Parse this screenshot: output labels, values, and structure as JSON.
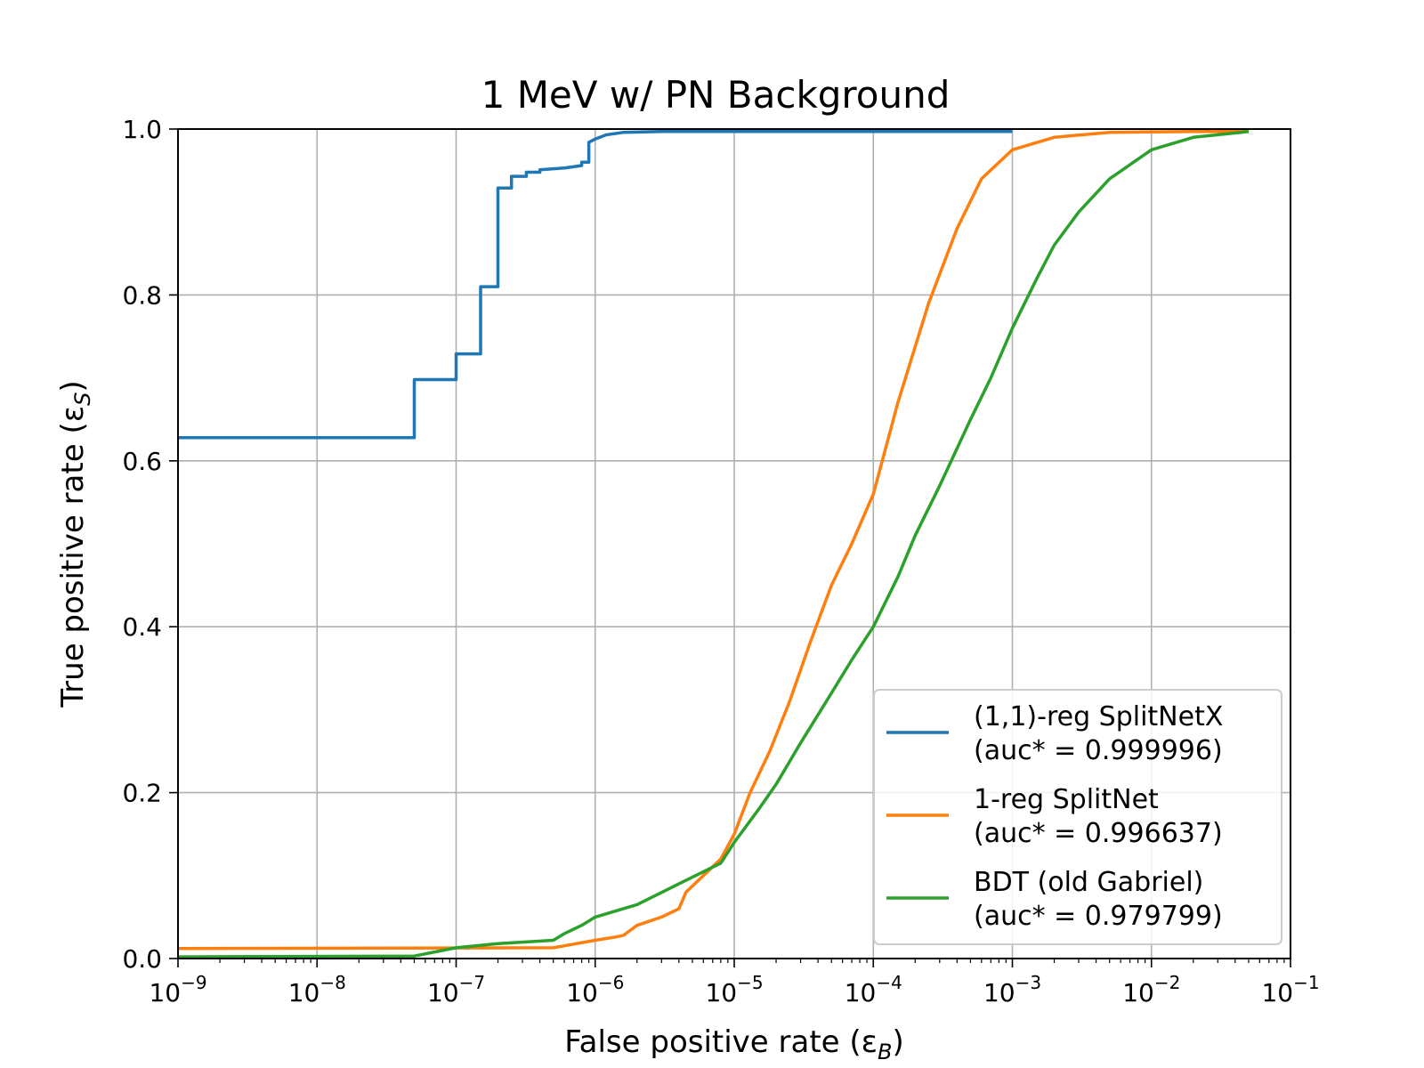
{
  "chart_data": {
    "type": "line",
    "title": "1 MeV w/ PN Background",
    "xlabel": "False positive rate (εB)",
    "xlabel_parts": {
      "main": "False positive rate (ε",
      "sub": "B",
      "close": ")"
    },
    "ylabel": "True positive rate (εS)",
    "ylabel_parts": {
      "main": "True positive rate (ε",
      "sub": "S",
      "close": ")"
    },
    "x_scale": "log",
    "xlim": [
      1e-09,
      0.1
    ],
    "ylim": [
      0.0,
      1.0
    ],
    "grid": true,
    "legend_position": "lower-right",
    "x_ticks": [
      {
        "value": 1e-09,
        "base": "10",
        "exp": "−9"
      },
      {
        "value": 1e-08,
        "base": "10",
        "exp": "−8"
      },
      {
        "value": 1e-07,
        "base": "10",
        "exp": "−7"
      },
      {
        "value": 1e-06,
        "base": "10",
        "exp": "−6"
      },
      {
        "value": 1e-05,
        "base": "10",
        "exp": "−5"
      },
      {
        "value": 0.0001,
        "base": "10",
        "exp": "−4"
      },
      {
        "value": 0.001,
        "base": "10",
        "exp": "−3"
      },
      {
        "value": 0.01,
        "base": "10",
        "exp": "−2"
      },
      {
        "value": 0.1,
        "base": "10",
        "exp": "−1"
      }
    ],
    "y_ticks": [
      "0.0",
      "0.2",
      "0.4",
      "0.6",
      "0.8",
      "1.0"
    ],
    "series": [
      {
        "name": "(1,1)-reg SplitNetX",
        "auc_label": "(auc* = 0.999996)",
        "color": "#1f77b4",
        "step": true,
        "points": [
          [
            1e-09,
            0.628
          ],
          [
            5e-08,
            0.628
          ],
          [
            5e-08,
            0.698
          ],
          [
            1e-07,
            0.698
          ],
          [
            1e-07,
            0.729
          ],
          [
            1.5e-07,
            0.729
          ],
          [
            1.5e-07,
            0.81
          ],
          [
            2e-07,
            0.81
          ],
          [
            2e-07,
            0.929
          ],
          [
            2.5e-07,
            0.929
          ],
          [
            2.5e-07,
            0.943
          ],
          [
            3.2e-07,
            0.943
          ],
          [
            3.2e-07,
            0.948
          ],
          [
            4e-07,
            0.948
          ],
          [
            4e-07,
            0.951
          ],
          [
            6e-07,
            0.953
          ],
          [
            8e-07,
            0.956
          ],
          [
            8e-07,
            0.96
          ],
          [
            9e-07,
            0.96
          ],
          [
            9e-07,
            0.984
          ],
          [
            1e-06,
            0.988
          ],
          [
            1.2e-06,
            0.993
          ],
          [
            1.6e-06,
            0.996
          ],
          [
            3e-06,
            0.997
          ],
          [
            1e-05,
            0.997
          ],
          [
            0.001,
            0.997
          ]
        ]
      },
      {
        "name": "1-reg SplitNet",
        "auc_label": "(auc* = 0.996637)",
        "color": "#ff7f0e",
        "step": false,
        "points": [
          [
            1e-09,
            0.012
          ],
          [
            5e-07,
            0.013
          ],
          [
            1e-06,
            0.022
          ],
          [
            1.4e-06,
            0.026
          ],
          [
            1.6e-06,
            0.028
          ],
          [
            2e-06,
            0.04
          ],
          [
            3e-06,
            0.05
          ],
          [
            4e-06,
            0.06
          ],
          [
            4.5e-06,
            0.08
          ],
          [
            6e-06,
            0.1
          ],
          [
            8e-06,
            0.12
          ],
          [
            1e-05,
            0.15
          ],
          [
            1.3e-05,
            0.2
          ],
          [
            1.8e-05,
            0.25
          ],
          [
            2.5e-05,
            0.31
          ],
          [
            3.5e-05,
            0.38
          ],
          [
            5e-05,
            0.45
          ],
          [
            7e-05,
            0.5
          ],
          [
            0.0001,
            0.56
          ],
          [
            0.00015,
            0.67
          ],
          [
            0.00025,
            0.79
          ],
          [
            0.0004,
            0.88
          ],
          [
            0.0006,
            0.94
          ],
          [
            0.001,
            0.975
          ],
          [
            0.002,
            0.99
          ],
          [
            0.005,
            0.996
          ],
          [
            0.02,
            0.997
          ],
          [
            0.05,
            0.997
          ]
        ]
      },
      {
        "name": "BDT (old Gabriel)",
        "auc_label": "(auc* = 0.979799)",
        "color": "#2ca02c",
        "step": false,
        "points": [
          [
            1e-09,
            0.002
          ],
          [
            5e-08,
            0.003
          ],
          [
            1e-07,
            0.013
          ],
          [
            2e-07,
            0.018
          ],
          [
            5e-07,
            0.022
          ],
          [
            6e-07,
            0.03
          ],
          [
            8e-07,
            0.04
          ],
          [
            1e-06,
            0.05
          ],
          [
            2e-06,
            0.065
          ],
          [
            4e-06,
            0.09
          ],
          [
            8e-06,
            0.115
          ],
          [
            1e-05,
            0.14
          ],
          [
            1.5e-05,
            0.18
          ],
          [
            2e-05,
            0.21
          ],
          [
            3e-05,
            0.26
          ],
          [
            5e-05,
            0.32
          ],
          [
            7e-05,
            0.36
          ],
          [
            0.0001,
            0.4
          ],
          [
            0.00015,
            0.46
          ],
          [
            0.0002,
            0.51
          ],
          [
            0.0003,
            0.57
          ],
          [
            0.0005,
            0.65
          ],
          [
            0.0007,
            0.7
          ],
          [
            0.001,
            0.76
          ],
          [
            0.0015,
            0.82
          ],
          [
            0.002,
            0.86
          ],
          [
            0.003,
            0.9
          ],
          [
            0.005,
            0.94
          ],
          [
            0.01,
            0.975
          ],
          [
            0.02,
            0.99
          ],
          [
            0.05,
            0.997
          ]
        ]
      }
    ]
  }
}
